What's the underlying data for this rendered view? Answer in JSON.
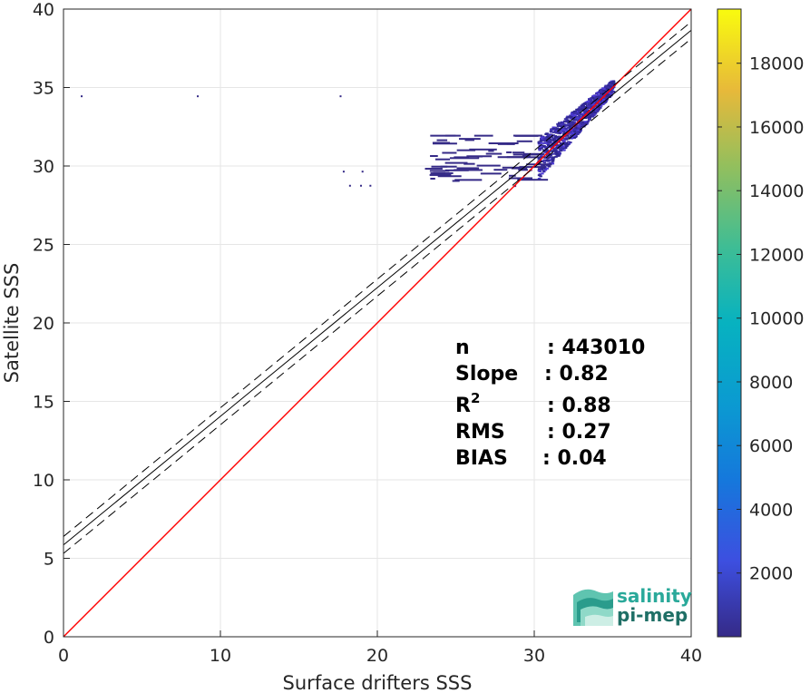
{
  "chart_data": {
    "type": "heatmap",
    "xlabel": "Surface drifters SSS",
    "ylabel": "Satellite SSS",
    "xlim": [
      0,
      40
    ],
    "ylim": [
      0,
      40
    ],
    "xticks": [
      "0",
      "10",
      "20",
      "30",
      "40"
    ],
    "yticks": [
      "0",
      "5",
      "10",
      "15",
      "20",
      "25",
      "30",
      "35",
      "40"
    ],
    "grid": true,
    "colorbar": {
      "range": [
        0,
        19700
      ],
      "ticks": [
        "2000",
        "4000",
        "6000",
        "8000",
        "10000",
        "12000",
        "14000",
        "16000",
        "18000"
      ],
      "colormap": "parula"
    },
    "reference_line": {
      "slope": 1,
      "intercept": 0,
      "color": "#ff0000"
    },
    "fit_line": {
      "slope": 0.82,
      "intercept": 5.85,
      "color": "#000000",
      "band_offset": 0.54
    },
    "stats": [
      {
        "label": "n",
        "value": ": 443010"
      },
      {
        "label": "Slope",
        "value": ": 0.82"
      },
      {
        "label": "R",
        "sup": "2",
        "value": ": 0.88"
      },
      {
        "label": "RMS",
        "value": ": 0.27"
      },
      {
        "label": "BIAS",
        "value": ": 0.04"
      }
    ],
    "density_clusters": [
      {
        "x": [
          30.0,
          35.0
        ],
        "y": [
          30.5,
          34.8
        ],
        "level": "high"
      },
      {
        "x": [
          23.0,
          30.0
        ],
        "y": [
          29.0,
          32.0
        ],
        "level": "low"
      },
      {
        "x": [
          1.1,
          17.6
        ],
        "y": [
          34.5,
          34.5
        ],
        "level": "sparse"
      }
    ]
  },
  "logo": {
    "line1": "salinity",
    "line2": "pi-mep"
  }
}
